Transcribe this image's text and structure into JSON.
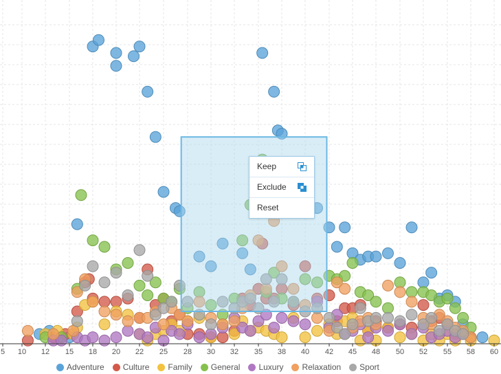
{
  "chart_data": {
    "type": "scatter",
    "title": "",
    "xlabel": "",
    "ylabel": "",
    "xlim": [
      5,
      60
    ],
    "ylim": [
      0,
      100
    ],
    "x_ticks": [
      "5",
      "10",
      "12",
      "15",
      "18",
      "20",
      "22",
      "25",
      "28",
      "30",
      "32",
      "35",
      "38",
      "40",
      "42",
      "45",
      "48",
      "50",
      "52",
      "55",
      "58",
      "60"
    ],
    "legend_position": "bottom",
    "grid": true,
    "series": [
      {
        "name": "Adventure",
        "color": "#5aa3d8",
        "points": [
          [
            18,
            92
          ],
          [
            18.5,
            94
          ],
          [
            20,
            86
          ],
          [
            20,
            90
          ],
          [
            21.5,
            89
          ],
          [
            22,
            92
          ],
          [
            23,
            78
          ],
          [
            24,
            64
          ],
          [
            25,
            47
          ],
          [
            26.5,
            42
          ],
          [
            27,
            41
          ],
          [
            29,
            27
          ],
          [
            30,
            24
          ],
          [
            31,
            31
          ],
          [
            33,
            28
          ],
          [
            34,
            23
          ],
          [
            35,
            48
          ],
          [
            37,
            78
          ],
          [
            37.5,
            66
          ],
          [
            38,
            65
          ],
          [
            41,
            42
          ],
          [
            42,
            36
          ],
          [
            43,
            30
          ],
          [
            44,
            36
          ],
          [
            45,
            28
          ],
          [
            46,
            26
          ],
          [
            47,
            27
          ],
          [
            48,
            27
          ],
          [
            49,
            28
          ],
          [
            50,
            25
          ],
          [
            51,
            36
          ],
          [
            52,
            19
          ],
          [
            53,
            22
          ],
          [
            54,
            14
          ],
          [
            55,
            15
          ],
          [
            56,
            13
          ],
          [
            57,
            6
          ],
          [
            58,
            2
          ],
          [
            59,
            2
          ],
          [
            11.5,
            3
          ],
          [
            12.5,
            4
          ],
          [
            14,
            2
          ],
          [
            15,
            2
          ],
          [
            16,
            37
          ],
          [
            35.5,
            90
          ]
        ]
      },
      {
        "name": "Culture",
        "color": "#d35a4a",
        "points": [
          [
            16,
            10
          ],
          [
            17,
            19
          ],
          [
            17.5,
            20
          ],
          [
            18,
            14
          ],
          [
            19,
            13
          ],
          [
            20,
            13
          ],
          [
            21,
            14
          ],
          [
            22,
            8
          ],
          [
            23,
            23
          ],
          [
            24,
            12
          ],
          [
            25,
            14
          ],
          [
            26,
            7
          ],
          [
            27,
            9
          ],
          [
            28,
            3
          ],
          [
            29,
            3
          ],
          [
            30,
            2
          ],
          [
            31,
            2
          ],
          [
            32,
            4
          ],
          [
            33,
            14
          ],
          [
            34,
            12
          ],
          [
            35,
            17
          ],
          [
            35.5,
            31
          ],
          [
            36,
            14
          ],
          [
            37,
            14
          ],
          [
            38,
            17
          ],
          [
            39,
            12
          ],
          [
            40,
            24
          ],
          [
            41,
            14
          ],
          [
            42,
            15
          ],
          [
            43,
            7
          ],
          [
            44,
            11
          ],
          [
            45,
            11
          ],
          [
            46,
            12
          ],
          [
            47,
            4
          ],
          [
            48,
            7
          ],
          [
            49,
            5
          ],
          [
            50,
            6
          ],
          [
            51,
            5
          ],
          [
            52,
            12
          ],
          [
            53,
            7
          ],
          [
            54,
            8
          ],
          [
            55,
            6
          ],
          [
            56,
            3
          ],
          [
            57,
            3
          ],
          [
            58,
            2
          ],
          [
            10.5,
            1
          ],
          [
            13,
            2
          ],
          [
            14.5,
            3
          ]
        ]
      },
      {
        "name": "Family",
        "color": "#f2c240",
        "points": [
          [
            15.5,
            3
          ],
          [
            16,
            5
          ],
          [
            17,
            12
          ],
          [
            18,
            13
          ],
          [
            19,
            6
          ],
          [
            20,
            10
          ],
          [
            21,
            9
          ],
          [
            22,
            3
          ],
          [
            23,
            1
          ],
          [
            24,
            3
          ],
          [
            25,
            4
          ],
          [
            26,
            6
          ],
          [
            27,
            4
          ],
          [
            28,
            7
          ],
          [
            29,
            8
          ],
          [
            30,
            2
          ],
          [
            31,
            6
          ],
          [
            32,
            3
          ],
          [
            33,
            7
          ],
          [
            34,
            4
          ],
          [
            35,
            5
          ],
          [
            36,
            4
          ],
          [
            37,
            3
          ],
          [
            38,
            2
          ],
          [
            39,
            8
          ],
          [
            40,
            2
          ],
          [
            41,
            4
          ],
          [
            42,
            6
          ],
          [
            43,
            3
          ],
          [
            44,
            7
          ],
          [
            45,
            8
          ],
          [
            46,
            1
          ],
          [
            47,
            4
          ],
          [
            48,
            1
          ],
          [
            49,
            5
          ],
          [
            50,
            2
          ],
          [
            51,
            3
          ],
          [
            52,
            1
          ],
          [
            53,
            3
          ],
          [
            54,
            1
          ],
          [
            55,
            3
          ],
          [
            56,
            1
          ],
          [
            57,
            3
          ],
          [
            58,
            1
          ],
          [
            60,
            1
          ],
          [
            12,
            3
          ],
          [
            13.5,
            4
          ]
        ]
      },
      {
        "name": "General",
        "color": "#86c14e",
        "points": [
          [
            16,
            17
          ],
          [
            16.5,
            46
          ],
          [
            18,
            32
          ],
          [
            19,
            30
          ],
          [
            20,
            23
          ],
          [
            21,
            25
          ],
          [
            22,
            18
          ],
          [
            23,
            15
          ],
          [
            24,
            19
          ],
          [
            25,
            14
          ],
          [
            26,
            13
          ],
          [
            27,
            17
          ],
          [
            28,
            11
          ],
          [
            29,
            16
          ],
          [
            30,
            12
          ],
          [
            31,
            9
          ],
          [
            32,
            14
          ],
          [
            33,
            32
          ],
          [
            34,
            43
          ],
          [
            35.5,
            57
          ],
          [
            36,
            16
          ],
          [
            37,
            22
          ],
          [
            38,
            14
          ],
          [
            39,
            13
          ],
          [
            40,
            20
          ],
          [
            41,
            19
          ],
          [
            42,
            21
          ],
          [
            43,
            20
          ],
          [
            44,
            21
          ],
          [
            45,
            25
          ],
          [
            46,
            16
          ],
          [
            47,
            15
          ],
          [
            48,
            13
          ],
          [
            49,
            11
          ],
          [
            50,
            19
          ],
          [
            51,
            16
          ],
          [
            52,
            16
          ],
          [
            53,
            15
          ],
          [
            54,
            13
          ],
          [
            55,
            14
          ],
          [
            56,
            11
          ],
          [
            57,
            8
          ],
          [
            58,
            5
          ],
          [
            12,
            2
          ],
          [
            14,
            2
          ]
        ]
      },
      {
        "name": "Luxury",
        "color": "#b077c2",
        "points": [
          [
            16,
            2
          ],
          [
            17,
            1
          ],
          [
            18,
            2
          ],
          [
            19,
            1
          ],
          [
            20,
            2
          ],
          [
            21,
            4
          ],
          [
            22,
            3
          ],
          [
            23,
            2
          ],
          [
            24,
            5
          ],
          [
            25,
            1
          ],
          [
            26,
            4
          ],
          [
            27,
            3
          ],
          [
            28,
            6
          ],
          [
            29,
            2
          ],
          [
            30,
            3
          ],
          [
            31,
            5
          ],
          [
            32,
            8
          ],
          [
            33,
            5
          ],
          [
            34,
            4
          ],
          [
            35,
            7
          ],
          [
            36,
            9
          ],
          [
            37,
            5
          ],
          [
            38,
            8
          ],
          [
            39,
            7
          ],
          [
            40,
            6
          ],
          [
            41,
            13
          ],
          [
            42,
            5
          ],
          [
            43,
            9
          ],
          [
            44,
            3
          ],
          [
            45,
            4
          ],
          [
            46,
            6
          ],
          [
            47,
            2
          ],
          [
            48,
            5
          ],
          [
            49,
            4
          ],
          [
            50,
            6
          ],
          [
            51,
            3
          ],
          [
            52,
            5
          ],
          [
            53,
            2
          ],
          [
            54,
            3
          ],
          [
            55,
            4
          ],
          [
            56,
            2
          ],
          [
            57,
            3
          ],
          [
            13,
            1
          ],
          [
            14,
            1
          ]
        ]
      },
      {
        "name": "Relaxation",
        "color": "#f0a060",
        "points": [
          [
            10.5,
            4
          ],
          [
            13,
            3
          ],
          [
            15.5,
            4
          ],
          [
            16,
            16
          ],
          [
            17,
            20
          ],
          [
            18,
            13
          ],
          [
            19,
            10
          ],
          [
            20,
            9
          ],
          [
            21,
            7
          ],
          [
            22,
            8
          ],
          [
            23,
            8
          ],
          [
            24,
            10
          ],
          [
            25,
            6
          ],
          [
            26,
            11
          ],
          [
            27,
            9
          ],
          [
            28,
            7
          ],
          [
            29,
            13
          ],
          [
            30,
            8
          ],
          [
            31,
            6
          ],
          [
            32,
            7
          ],
          [
            33,
            11
          ],
          [
            34,
            15
          ],
          [
            35,
            32
          ],
          [
            36,
            17
          ],
          [
            37,
            38
          ],
          [
            38,
            24
          ],
          [
            39,
            17
          ],
          [
            40,
            12
          ],
          [
            41,
            8
          ],
          [
            42,
            4
          ],
          [
            43,
            19
          ],
          [
            44,
            17
          ],
          [
            45,
            5
          ],
          [
            46,
            7
          ],
          [
            47,
            8
          ],
          [
            48,
            6
          ],
          [
            49,
            18
          ],
          [
            50,
            16
          ],
          [
            51,
            13
          ],
          [
            52,
            8
          ],
          [
            53,
            6
          ],
          [
            54,
            9
          ],
          [
            55,
            7
          ],
          [
            56,
            5
          ],
          [
            57,
            4
          ],
          [
            58,
            2
          ]
        ]
      },
      {
        "name": "Sport",
        "color": "#a8a8a8",
        "points": [
          [
            16,
            7
          ],
          [
            17,
            18
          ],
          [
            18,
            24
          ],
          [
            19,
            19
          ],
          [
            20,
            22
          ],
          [
            21,
            15
          ],
          [
            22,
            29
          ],
          [
            23,
            21
          ],
          [
            24,
            9
          ],
          [
            25,
            11
          ],
          [
            26,
            13
          ],
          [
            27,
            18
          ],
          [
            28,
            13
          ],
          [
            29,
            9
          ],
          [
            30,
            6
          ],
          [
            31,
            13
          ],
          [
            32,
            11
          ],
          [
            33,
            13
          ],
          [
            34,
            14
          ],
          [
            35,
            11
          ],
          [
            36,
            20
          ],
          [
            37,
            13
          ],
          [
            38,
            20
          ],
          [
            39,
            13
          ],
          [
            40,
            10
          ],
          [
            41,
            11
          ],
          [
            42,
            8
          ],
          [
            43,
            5
          ],
          [
            44,
            3
          ],
          [
            45,
            6
          ],
          [
            46,
            11
          ],
          [
            47,
            7
          ],
          [
            48,
            8
          ],
          [
            49,
            8
          ],
          [
            50,
            7
          ],
          [
            51,
            9
          ],
          [
            52,
            6
          ],
          [
            53,
            8
          ],
          [
            54,
            4
          ],
          [
            55,
            6
          ],
          [
            56,
            4
          ],
          [
            57,
            3
          ]
        ]
      }
    ]
  },
  "context_menu": {
    "items": [
      {
        "label": "Keep",
        "icon": "keep-icon"
      },
      {
        "label": "Exclude",
        "icon": "exclude-icon"
      },
      {
        "label": "Reset",
        "icon": ""
      }
    ]
  },
  "selection": {
    "x_range": [
      27.2,
      41.8
    ],
    "y_range": [
      10,
      64
    ]
  }
}
